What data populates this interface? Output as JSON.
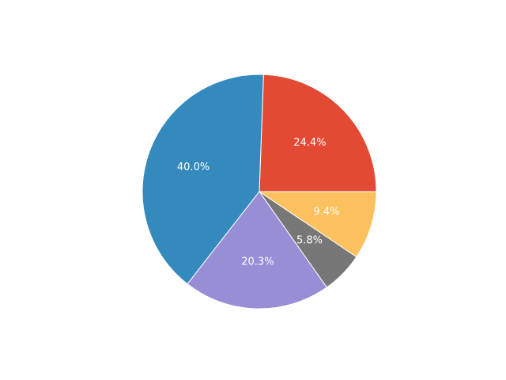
{
  "chart_data": {
    "type": "pie",
    "title": "",
    "slices": [
      {
        "label": "",
        "value": 24.4,
        "text": "24.4%",
        "color": "#E24A33"
      },
      {
        "label": "",
        "value": 40.0,
        "text": "40.0%",
        "color": "#348ABD"
      },
      {
        "label": "",
        "value": 20.3,
        "text": "20.3%",
        "color": "#988ED5"
      },
      {
        "label": "",
        "value": 5.8,
        "text": "5.8%",
        "color": "#777777"
      },
      {
        "label": "",
        "value": 9.4,
        "text": "9.4%",
        "color": "#FBC15E"
      }
    ],
    "start_angle": "0 degrees (3 o'clock), counter-clockwise",
    "legend": "none",
    "edge_color": "#ffffff"
  }
}
